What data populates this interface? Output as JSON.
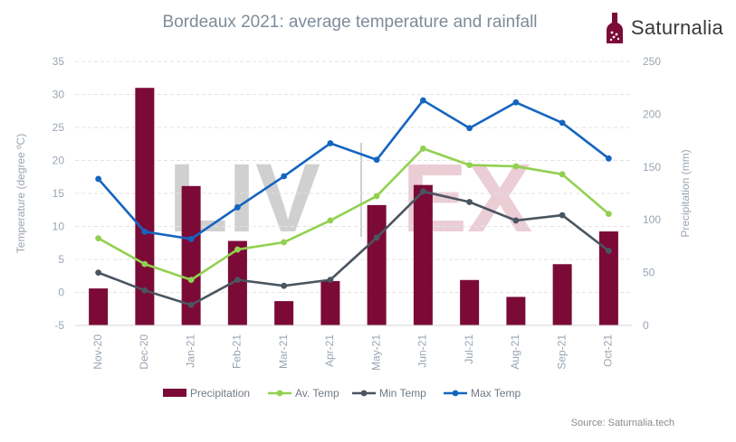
{
  "title": "Bordeaux 2021: average temperature and rainfall",
  "brand": {
    "name": "Saturnalia",
    "icon": "wine-bottle-icon"
  },
  "watermark": {
    "left": "LIV",
    "right": "EX"
  },
  "source": "Source: Saturnalia.tech",
  "colors": {
    "precipitation": "#7b0a36",
    "avg_temp": "#92d050",
    "min_temp": "#4a5560",
    "max_temp": "#1565c0",
    "axis_text": "#9aa5b1"
  },
  "chart_data": {
    "type": "bar",
    "categories": [
      "Nov-20",
      "Dec-20",
      "Jan-21",
      "Feb-21",
      "Mar-21",
      "Apr-21",
      "May-21",
      "Jun-21",
      "Jul-21",
      "Aug-21",
      "Sep-21",
      "Oct-21"
    ],
    "series": [
      {
        "name": "Precipitation",
        "type": "bar",
        "axis": "right",
        "values": [
          35,
          225,
          132,
          80,
          23,
          42,
          114,
          133,
          43,
          27,
          58,
          89
        ]
      },
      {
        "name": "Av. Temp",
        "type": "line",
        "axis": "left",
        "values": [
          8.2,
          4.3,
          1.9,
          6.5,
          7.6,
          10.9,
          14.6,
          21.8,
          19.3,
          19.1,
          17.9,
          11.9
        ]
      },
      {
        "name": "Min Temp",
        "type": "line",
        "axis": "left",
        "values": [
          3.0,
          0.3,
          -1.9,
          1.9,
          1.0,
          1.9,
          8.3,
          15.3,
          13.7,
          10.9,
          11.7,
          6.3
        ]
      },
      {
        "name": "Max Temp",
        "type": "line",
        "axis": "left",
        "values": [
          17.2,
          9.2,
          8.1,
          12.9,
          17.6,
          22.6,
          20.1,
          29.1,
          24.9,
          28.8,
          25.7,
          20.3
        ]
      }
    ],
    "ylabel": "Temperature (degree ºC)",
    "y2label": "Precipitation (mm)",
    "ylim": [
      -5,
      35
    ],
    "yticks": [
      -5,
      0,
      5,
      10,
      15,
      20,
      25,
      30,
      35
    ],
    "y2lim": [
      0,
      250
    ],
    "y2ticks": [
      0,
      50,
      100,
      150,
      200,
      250
    ],
    "grid": true,
    "legend": "bottom"
  }
}
